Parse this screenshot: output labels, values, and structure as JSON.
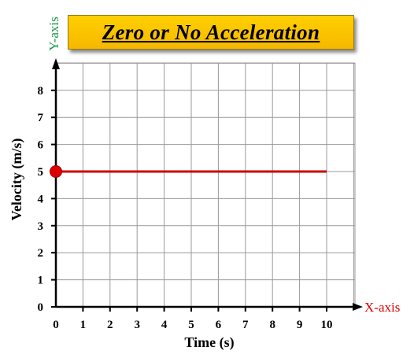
{
  "chart_data": {
    "type": "line",
    "title": "Zero or No Acceleration",
    "xlabel": "Time (s)",
    "ylabel": "Velocity (m/s)",
    "x_axis_name": "X-axis",
    "y_axis_name": "Y-axis",
    "xlim": [
      0,
      11
    ],
    "ylim": [
      0,
      8.8
    ],
    "x_ticks": [
      "0",
      "1",
      "2",
      "3",
      "4",
      "5",
      "6",
      "7",
      "8",
      "9",
      "10"
    ],
    "y_ticks": [
      "0",
      "1",
      "2",
      "3",
      "4",
      "5",
      "6",
      "7",
      "8"
    ],
    "grid": true,
    "series": [
      {
        "x": [
          0,
          10
        ],
        "y": [
          5,
          5
        ]
      }
    ],
    "start_point": {
      "x": 0,
      "y": 5
    }
  },
  "colors": {
    "line": "#cc0000",
    "point": "#dd0000",
    "x_axis_label": "#e00000",
    "y_axis_label": "#1a9a4a",
    "title_bg": "#ffc800",
    "grid": "#999999",
    "axis": "#000000"
  }
}
